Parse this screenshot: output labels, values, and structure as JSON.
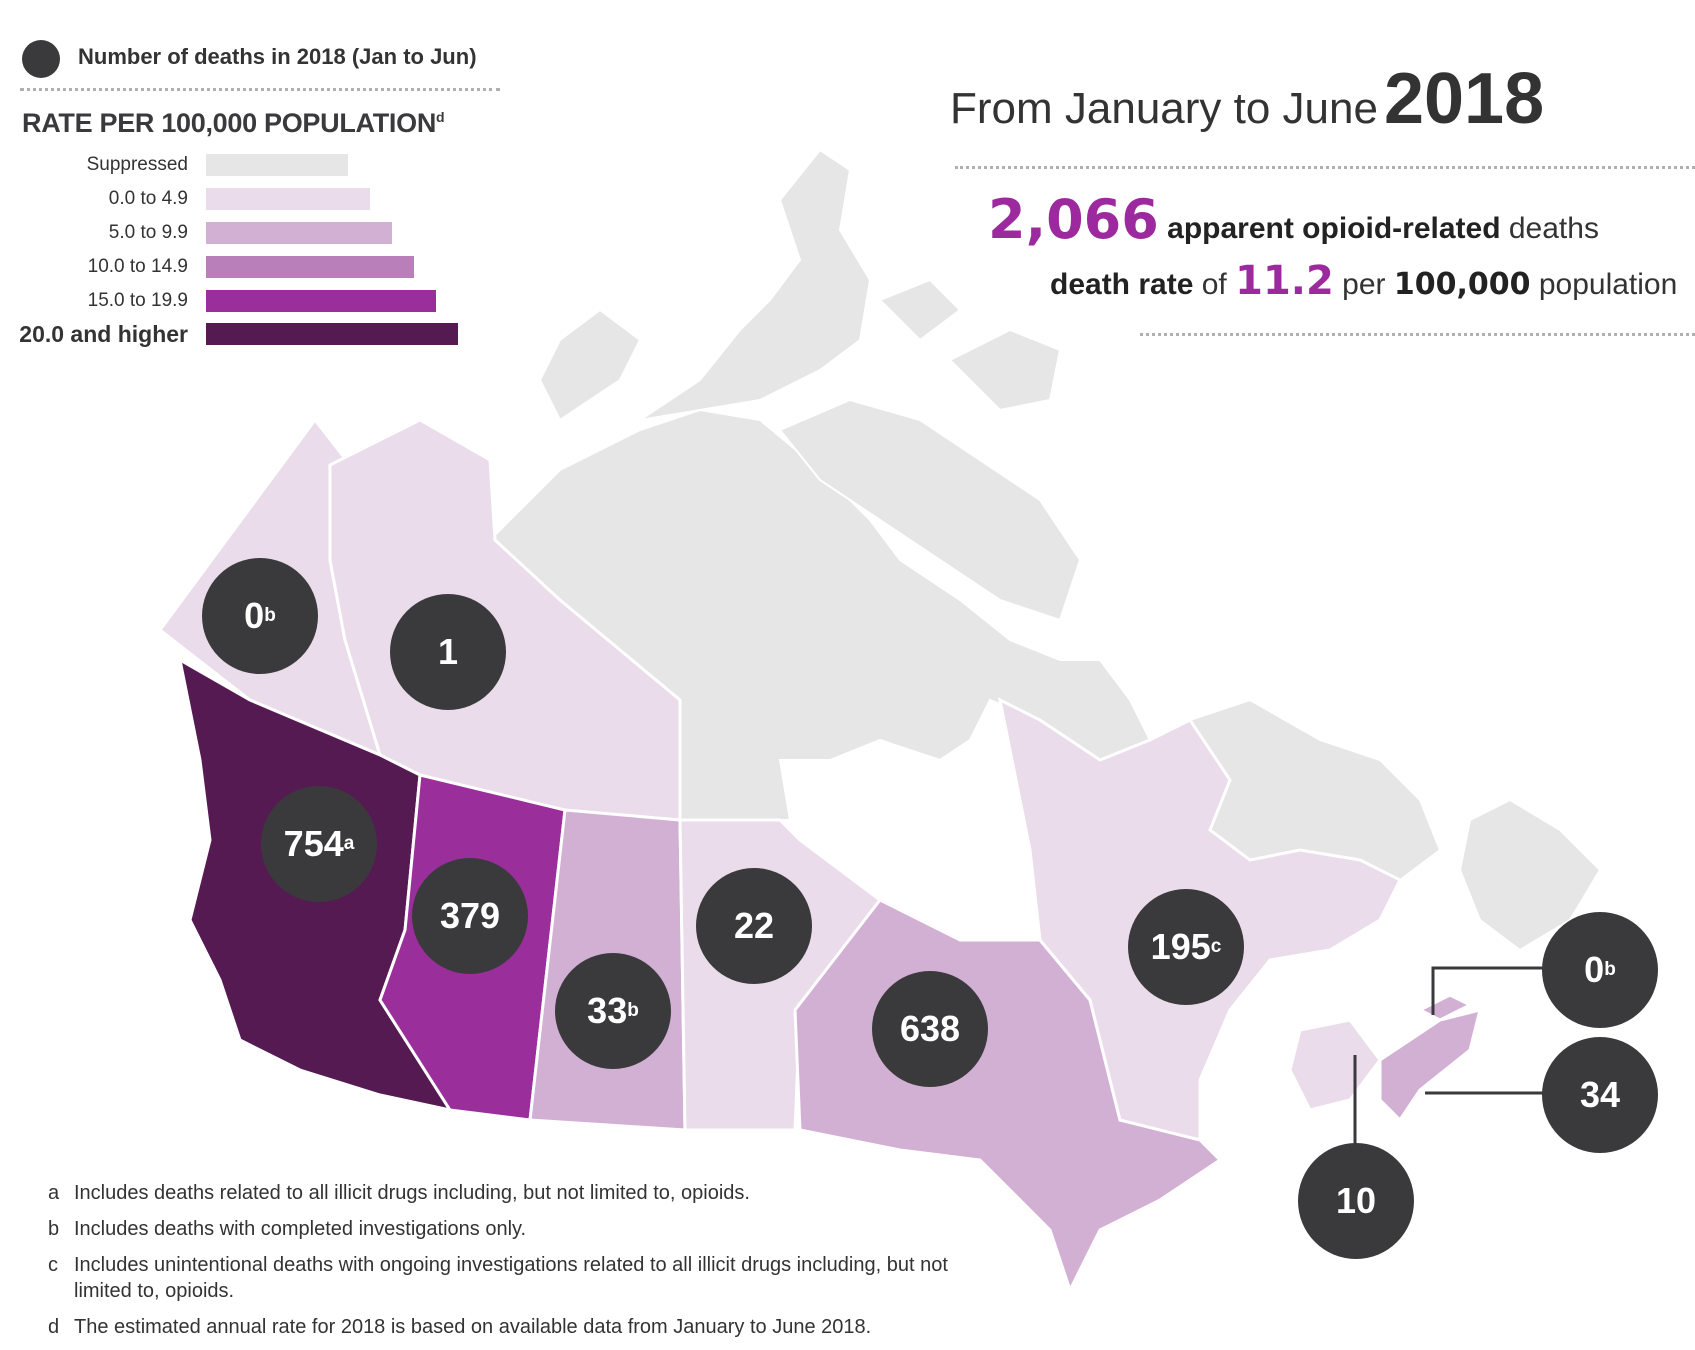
{
  "legend": {
    "dot_label": "Number of deaths in 2018 (Jan to Jun)",
    "rate_heading": "RATE PER 100,000 POPULATION",
    "rate_heading_note": "d",
    "items": [
      {
        "label": "Suppressed",
        "color": "#e6e6e6"
      },
      {
        "label": "0.0 to 4.9",
        "color": "#eadcea"
      },
      {
        "label": "5.0 to 9.9",
        "color": "#d2b0d4"
      },
      {
        "label": "10.0 to 14.9",
        "color": "#b87fba"
      },
      {
        "label": "15.0 to 19.9",
        "color": "#9a2e9b"
      },
      {
        "label": "20.0 and higher",
        "color": "#561a53"
      }
    ]
  },
  "headline": {
    "prefix": "From January to June",
    "year": "2018"
  },
  "stats": {
    "deaths_count": "2,066",
    "deaths_bold": "apparent opioid-related",
    "deaths_tail": "deaths",
    "rate_bold": "death rate",
    "rate_of": "of",
    "rate_value": "11.2",
    "rate_per": "per",
    "rate_pop": "100,000",
    "rate_tail": "population"
  },
  "regions": [
    {
      "name": "Yukon",
      "deaths": "0",
      "note": "b",
      "rate_class": "0.0 to 4.9"
    },
    {
      "name": "Northwest Territories",
      "deaths": "1",
      "note": "",
      "rate_class": "0.0 to 4.9"
    },
    {
      "name": "British Columbia",
      "deaths": "754",
      "note": "a",
      "rate_class": "20.0 and higher"
    },
    {
      "name": "Alberta",
      "deaths": "379",
      "note": "",
      "rate_class": "15.0 to 19.9"
    },
    {
      "name": "Saskatchewan",
      "deaths": "33",
      "note": "b",
      "rate_class": "5.0 to 9.9"
    },
    {
      "name": "Manitoba",
      "deaths": "22",
      "note": "",
      "rate_class": "0.0 to 4.9"
    },
    {
      "name": "Ontario",
      "deaths": "638",
      "note": "",
      "rate_class": "5.0 to 9.9"
    },
    {
      "name": "Quebec",
      "deaths": "195",
      "note": "c",
      "rate_class": "0.0 to 4.9"
    },
    {
      "name": "Prince Edward Island",
      "deaths": "0",
      "note": "b",
      "rate_class": "5.0 to 9.9"
    },
    {
      "name": "Nova Scotia",
      "deaths": "34",
      "note": "",
      "rate_class": "5.0 to 9.9"
    },
    {
      "name": "New Brunswick",
      "deaths": "10",
      "note": "",
      "rate_class": "0.0 to 4.9"
    }
  ],
  "footnotes": [
    {
      "key": "a",
      "text": "Includes deaths related to all illicit drugs including, but not limited to, opioids."
    },
    {
      "key": "b",
      "text": "Includes deaths with completed investigations only."
    },
    {
      "key": "c",
      "text": "Includes unintentional deaths with ongoing investigations related to all illicit drugs including, but not limited to, opioids."
    },
    {
      "key": "d",
      "text": "The estimated annual rate for 2018 is based on available data from January to June 2018."
    }
  ]
}
